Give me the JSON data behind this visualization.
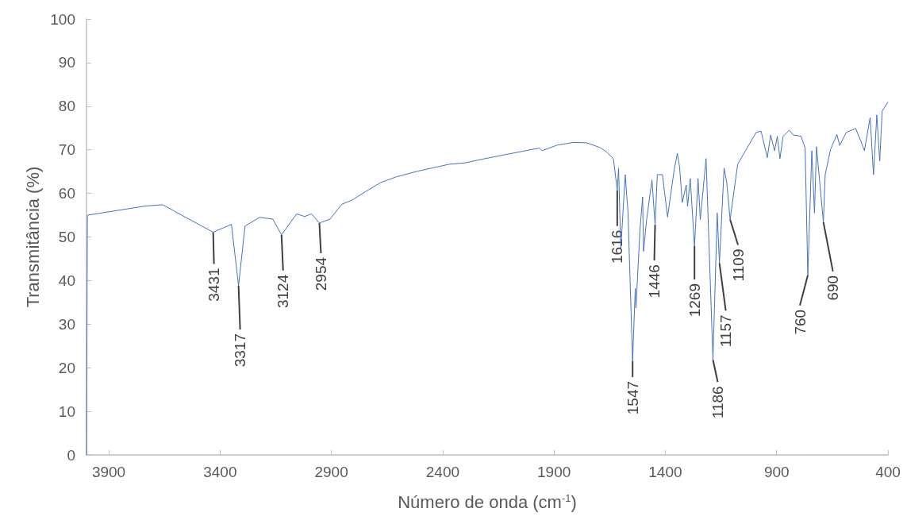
{
  "chart_data": {
    "type": "line",
    "xlabel": "Número de onda (cm$^{-1}$)",
    "ylabel": "Transmitância (%)",
    "color": "#4472c4",
    "marker": "none",
    "line_style": "solid",
    "xlim": [
      4000,
      400
    ],
    "xticks": [
      3900,
      3400,
      2900,
      2400,
      1900,
      1400,
      900,
      400
    ],
    "ylim": [
      0,
      100
    ],
    "yticks": [
      0,
      10,
      20,
      30,
      40,
      50,
      60,
      70,
      80,
      90,
      100
    ],
    "x": [
      4000,
      3996,
      3736,
      3658,
      3558,
      3431,
      3349,
      3317,
      3288,
      3222,
      3163,
      3124,
      3056,
      3020,
      2989,
      2954,
      2906,
      2853,
      2805,
      2750,
      2678,
      2608,
      2512,
      2441,
      2369,
      2299,
      2227,
      2108,
      1966,
      1954,
      1884,
      1812,
      1752,
      1693,
      1663,
      1645,
      1633,
      1616,
      1610,
      1600,
      1580,
      1573,
      1568,
      1547,
      1535,
      1532,
      1514,
      1502,
      1498,
      1484,
      1460,
      1446,
      1436,
      1413,
      1390,
      1360,
      1346,
      1336,
      1324,
      1306,
      1300,
      1288,
      1269,
      1253,
      1243,
      1217,
      1186,
      1167,
      1157,
      1136,
      1124,
      1109,
      1075,
      1040,
      992,
      970,
      942,
      927,
      909,
      897,
      885,
      871,
      843,
      825,
      790,
      772,
      760,
      742,
      730,
      721,
      690,
      682,
      658,
      629,
      617,
      587,
      545,
      521,
      506,
      480,
      465,
      450,
      437,
      426,
      400
    ],
    "values": [
      0,
      55.0,
      57.1,
      57.4,
      54.6,
      51.1,
      52.9,
      38.8,
      52.5,
      54.5,
      54.1,
      50.5,
      55.3,
      54.7,
      55.3,
      53.2,
      54.1,
      57.5,
      58.5,
      60.3,
      62.5,
      63.8,
      65.1,
      65.9,
      66.7,
      67.0,
      67.8,
      69.0,
      70.4,
      69.8,
      71.1,
      71.7,
      71.6,
      70.5,
      69.5,
      68.5,
      67.9,
      60.7,
      65.8,
      47.3,
      64.3,
      59.2,
      56.1,
      21.5,
      38.2,
      33.7,
      51.5,
      59.2,
      46.7,
      54.0,
      63.1,
      52.8,
      64.3,
      64.3,
      54.6,
      65.5,
      69.2,
      66.1,
      57.9,
      61.9,
      57.0,
      63.4,
      47.9,
      63.4,
      54.0,
      68.0,
      21.8,
      55.5,
      44.0,
      65.8,
      62.5,
      54.0,
      66.7,
      69.8,
      74.0,
      74.3,
      68.2,
      73.4,
      69.8,
      73.1,
      68.0,
      73.1,
      74.5,
      73.4,
      73.1,
      70.4,
      41.2,
      69.8,
      55.5,
      70.7,
      53.4,
      64.3,
      70.1,
      73.5,
      71.0,
      74.0,
      74.9,
      71.9,
      69.8,
      77.4,
      64.3,
      78.0,
      67.4,
      78.9,
      81.0
    ],
    "annotations": [
      {
        "text": "3431",
        "x": 3431,
        "y": 51.1
      },
      {
        "text": "3317",
        "x": 3317,
        "y": 38.8
      },
      {
        "text": "3124",
        "x": 3124,
        "y": 50.5
      },
      {
        "text": "2954",
        "x": 2954,
        "y": 53.2
      },
      {
        "text": "1616",
        "x": 1616,
        "y": 60.7
      },
      {
        "text": "1547",
        "x": 1547,
        "y": 21.5
      },
      {
        "text": "1446",
        "x": 1446,
        "y": 52.8
      },
      {
        "text": "1269",
        "x": 1269,
        "y": 47.9
      },
      {
        "text": "1186",
        "x": 1186,
        "y": 21.8
      },
      {
        "text": "1157",
        "x": 1157,
        "y": 44.0
      },
      {
        "text": "1109",
        "x": 1109,
        "y": 54.0
      },
      {
        "text": "760",
        "x": 760,
        "y": 41.2
      },
      {
        "text": "690",
        "x": 690,
        "y": 53.4
      }
    ]
  }
}
